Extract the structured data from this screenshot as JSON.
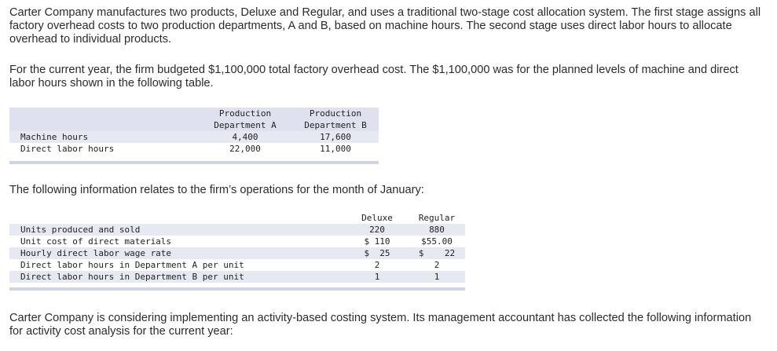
{
  "paragraphs": {
    "intro": "Carter Company manufactures two products, Deluxe and Regular, and uses a traditional two-stage cost allocation system. The first stage assigns all factory overhead costs to two production departments, A and B, based on machine hours. The second stage uses direct labor hours to allocate overhead to individual products.",
    "budget": "For the current year, the firm budgeted $1,100,000 total factory overhead cost. The $1,100,000 was for the planned levels of machine and direct labor hours shown in the following table.",
    "january": "The following information relates to the firm’s operations for the month of January:",
    "abc": "Carter Company is considering implementing an activity-based costing system. Its management accountant has collected the following information for activity cost analysis for the current year:"
  },
  "table1": {
    "headers": [
      "Production\nDepartment A",
      "Production\nDepartment B"
    ],
    "rows": [
      {
        "label": "Machine hours",
        "a": "4,400",
        "b": "17,600"
      },
      {
        "label": "Direct labor hours",
        "a": "22,000",
        "b": "11,000"
      }
    ]
  },
  "table2": {
    "headers": [
      "Deluxe",
      "Regular"
    ],
    "rows": [
      {
        "label": "Units produced and sold",
        "deluxe": "220",
        "regular": "880"
      },
      {
        "label": "Unit cost of direct materials",
        "deluxe": "$ 110",
        "regular": "$55.00"
      },
      {
        "label": "Hourly direct labor wage rate",
        "deluxe": "$  25",
        "regular": "$    22"
      },
      {
        "label": "Direct labor hours in Department A per unit",
        "deluxe": "2",
        "regular": "2"
      },
      {
        "label": "Direct labor hours in Department B per unit",
        "deluxe": "1",
        "regular": "1"
      }
    ]
  },
  "colors": {
    "shade": "#e6e8f2",
    "text": "#2b2b2b"
  }
}
